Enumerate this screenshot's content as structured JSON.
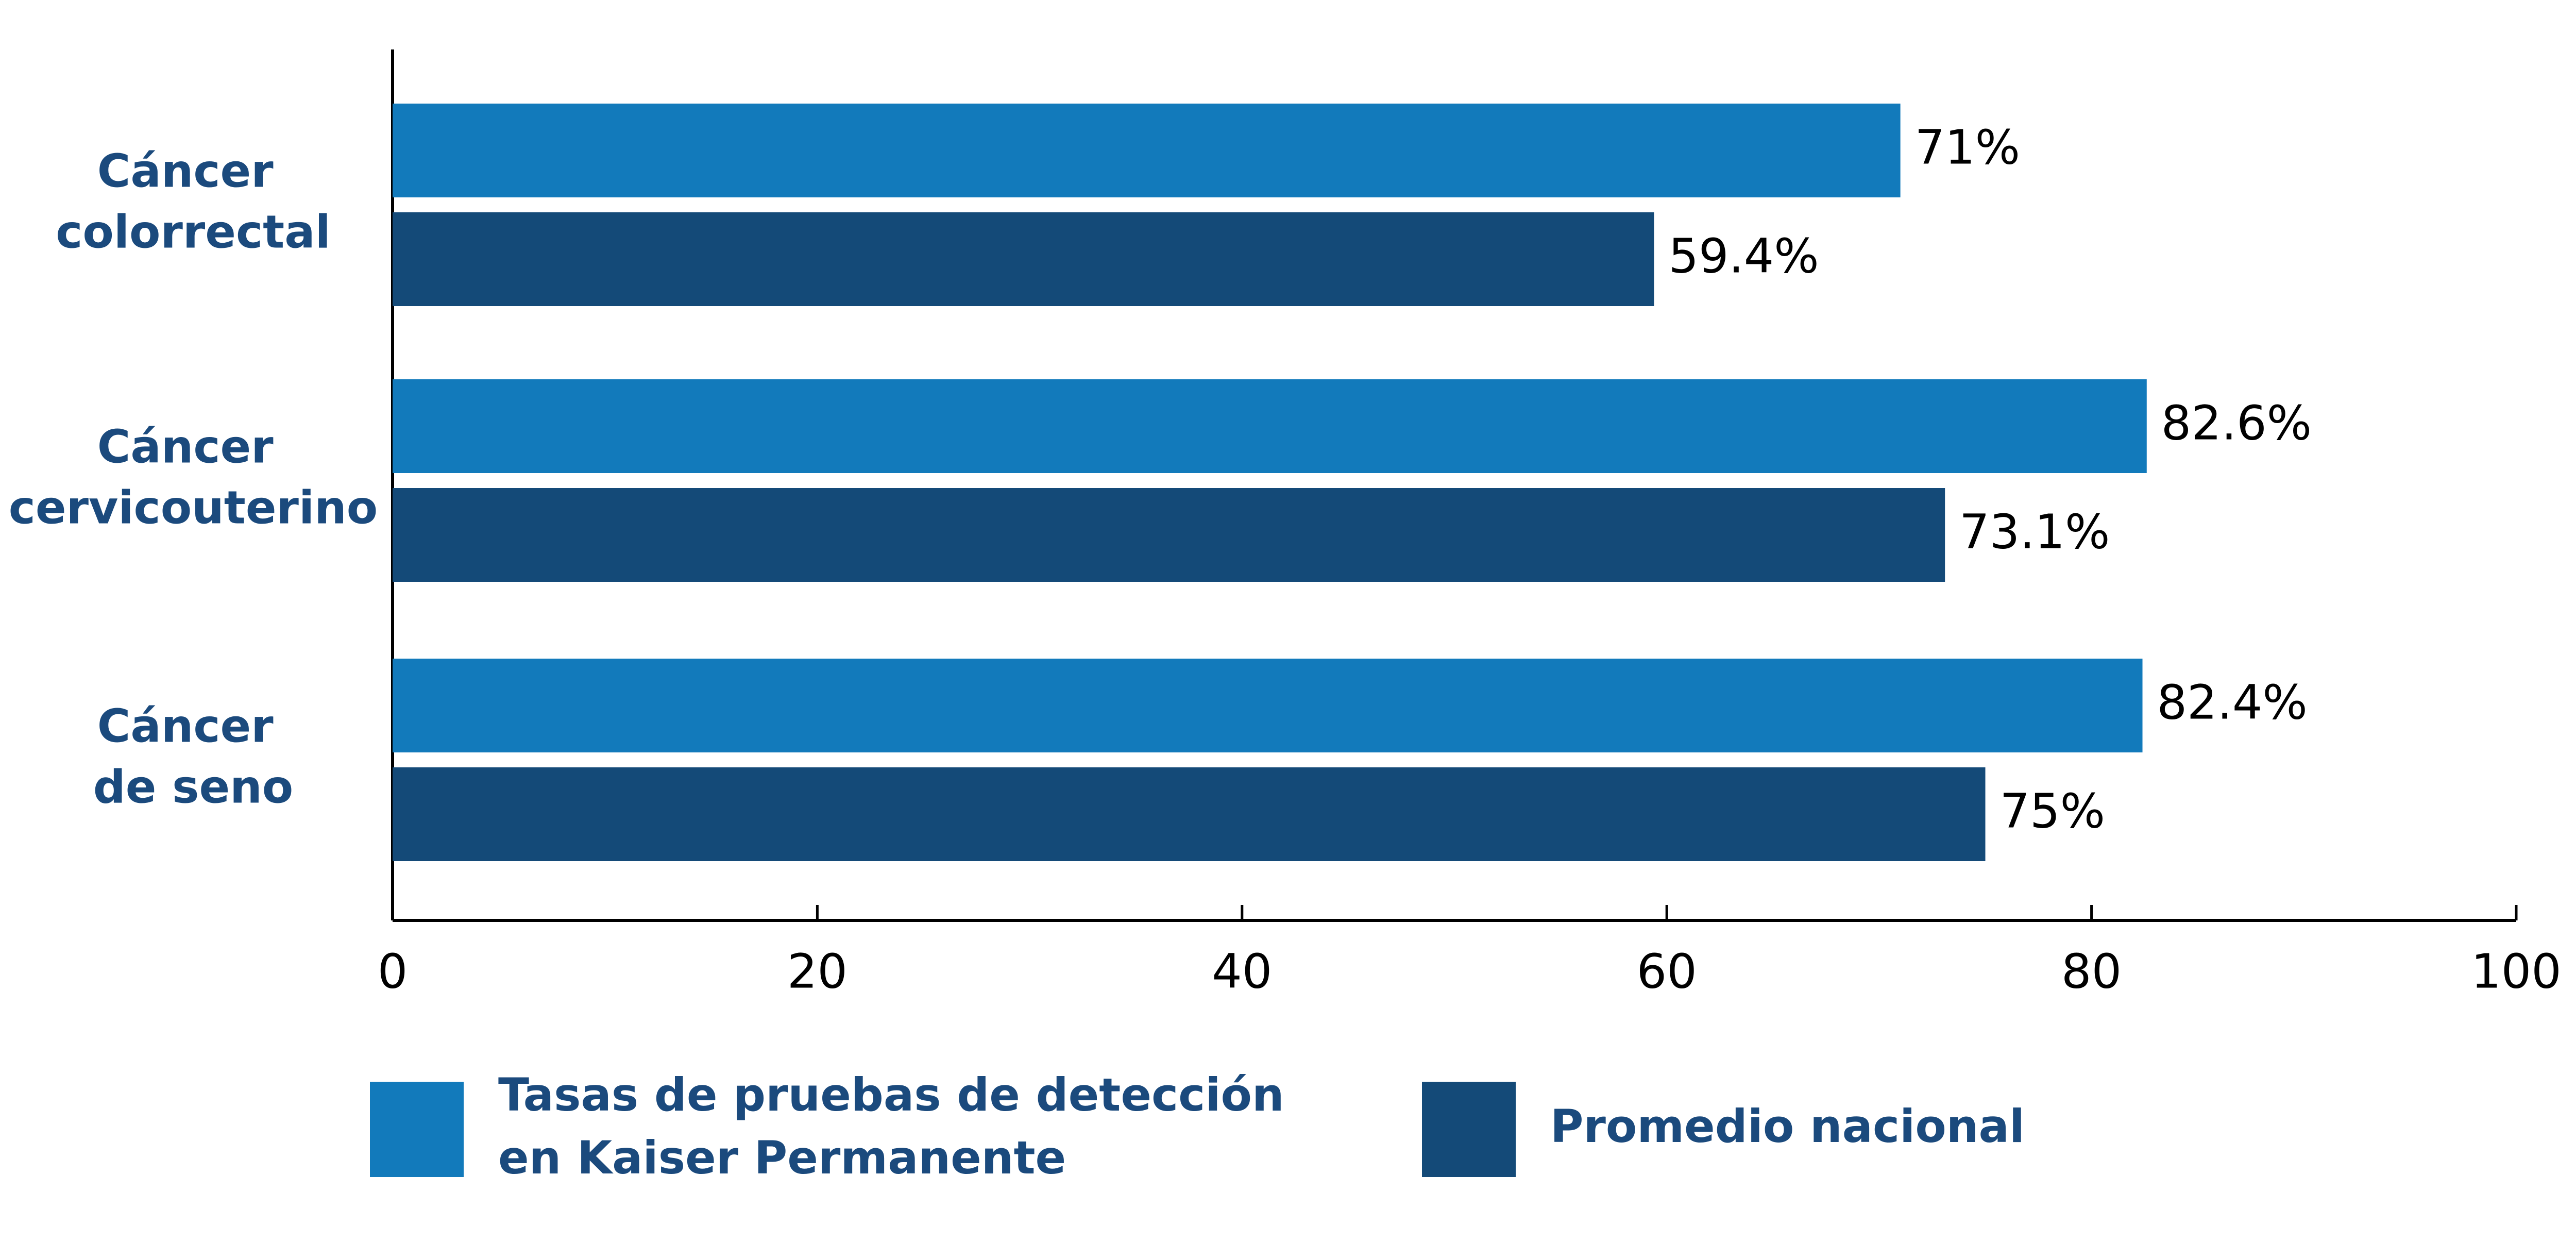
{
  "chart_data": {
    "type": "bar",
    "orientation": "horizontal",
    "categories": [
      "Cáncer colorrectal",
      "Cáncer cervicouterino",
      "Cáncer de seno"
    ],
    "series": [
      {
        "name": "Tasas de pruebas de detección en Kaiser Permanente",
        "color": "#127abb",
        "values": [
          71,
          82.6,
          82.4
        ],
        "value_labels": [
          "71%",
          "82.6%",
          "82.4%"
        ]
      },
      {
        "name": "Promedio nacional",
        "color": "#144a78",
        "values": [
          59.4,
          73.1,
          75
        ],
        "value_labels": [
          "59.4%",
          "73.1%",
          "75%"
        ]
      }
    ],
    "xlim": [
      0,
      100
    ],
    "xticks": [
      0,
      20,
      40,
      60,
      80,
      100
    ],
    "grid": false
  }
}
